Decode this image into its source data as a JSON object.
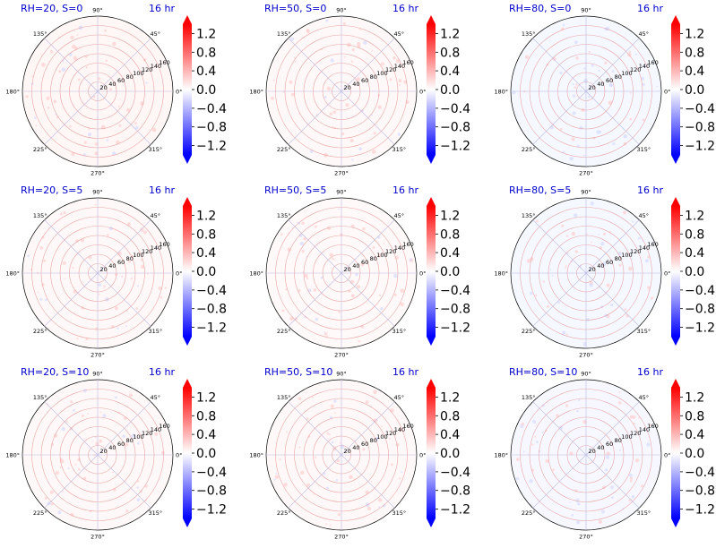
{
  "chart_data": {
    "type": "heatmap",
    "projection": "polar",
    "time_label": "16 hr",
    "angle_ticks": [
      "0°",
      "45°",
      "90°",
      "135°",
      "180°",
      "225°",
      "270°",
      "315°"
    ],
    "radial_ticks": [
      "20",
      "40",
      "60",
      "80",
      "100",
      "120",
      "140",
      "160"
    ],
    "radial_values": [
      20,
      40,
      60,
      80,
      100,
      120,
      140,
      160
    ],
    "rlim": [
      0,
      160
    ],
    "colorbar": {
      "cmap": "bwr",
      "ticks": [
        "1.2",
        "0.8",
        "0.4",
        "0.0",
        "−0.4",
        "−0.8",
        "−1.2"
      ],
      "tick_values": [
        1.2,
        0.8,
        0.4,
        0.0,
        -0.4,
        -0.8,
        -1.2
      ],
      "vmin": -1.4,
      "vmax": 1.4,
      "extend": "both"
    },
    "panels": [
      {
        "title": "RH=20, S=0"
      },
      {
        "title": "RH=50, S=0"
      },
      {
        "title": "RH=80, S=0"
      },
      {
        "title": "RH=20, S=5"
      },
      {
        "title": "RH=50, S=5"
      },
      {
        "title": "RH=80, S=5"
      },
      {
        "title": "RH=20, S=10"
      },
      {
        "title": "RH=50, S=10"
      },
      {
        "title": "RH=80, S=10"
      }
    ],
    "grid": true
  }
}
